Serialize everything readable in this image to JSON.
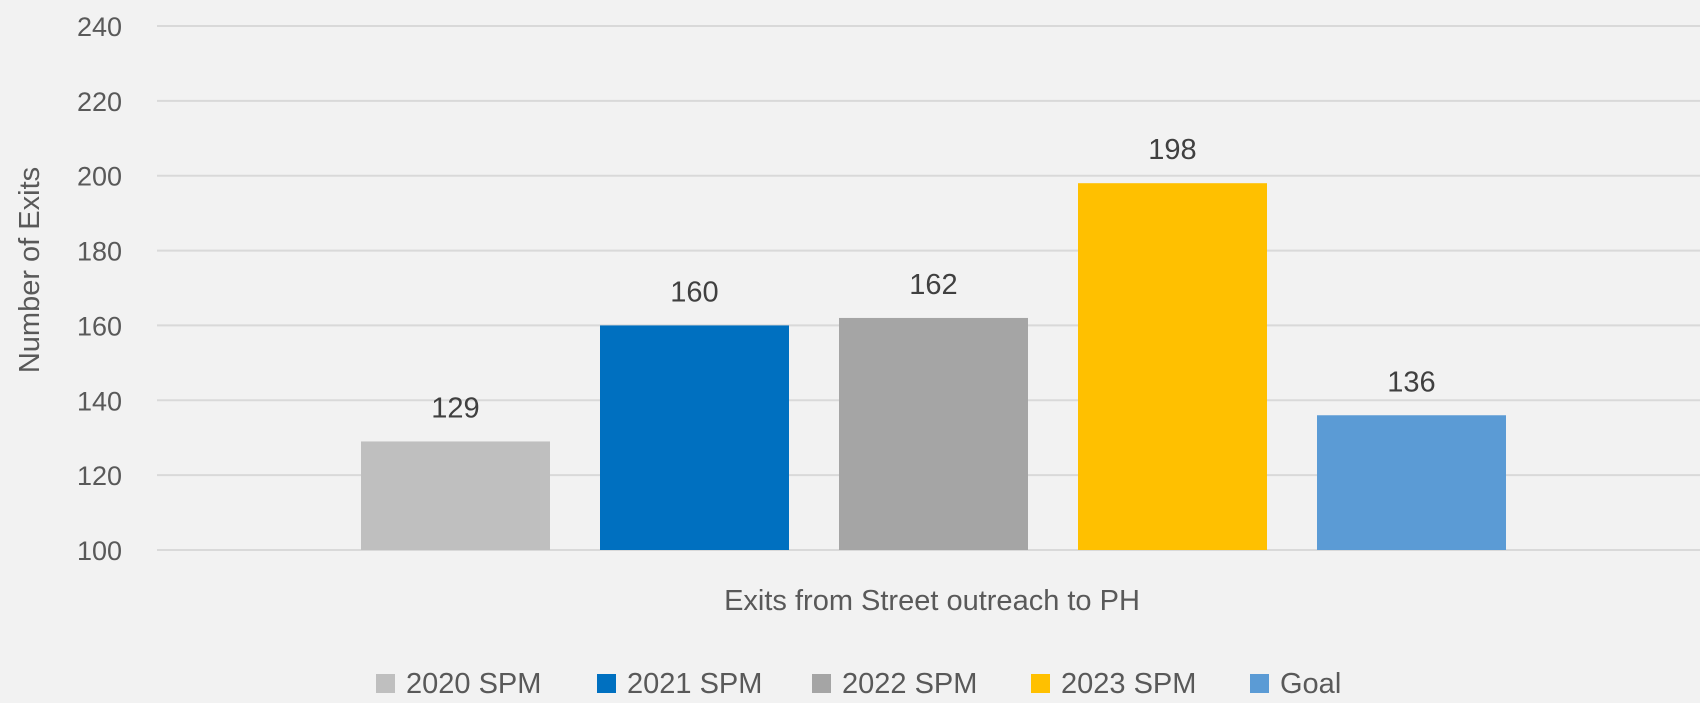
{
  "chart_data": {
    "type": "bar",
    "title": "",
    "xlabel": "Exits from Street outreach to PH",
    "ylabel": "Number of Exits",
    "ylim": [
      100,
      240
    ],
    "yticks": [
      100,
      120,
      140,
      160,
      180,
      200,
      220,
      240
    ],
    "grid": true,
    "legend_position": "bottom",
    "categories": [
      "Exits from Street outreach to PH"
    ],
    "series": [
      {
        "name": "2020 SPM",
        "values": [
          129
        ],
        "color": "#bfbfbf"
      },
      {
        "name": "2021 SPM",
        "values": [
          160
        ],
        "color": "#0070c0"
      },
      {
        "name": "2022 SPM",
        "values": [
          162
        ],
        "color": "#a5a5a5"
      },
      {
        "name": "2023 SPM",
        "values": [
          198
        ],
        "color": "#ffc000"
      },
      {
        "name": "Goal",
        "values": [
          136
        ],
        "color": "#5b9bd5"
      }
    ]
  }
}
